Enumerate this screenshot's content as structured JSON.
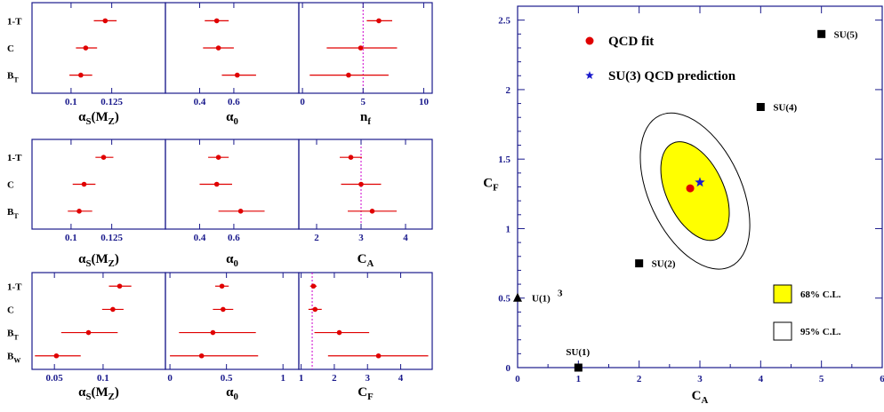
{
  "chart_data": [
    {
      "type": "error-bar-panels",
      "rows": [
        {
          "labels": [
            "1-T",
            "C",
            "B_T"
          ],
          "panels": [
            {
              "xlabel": "α_S(M_Z)",
              "xlim": [
                0.076,
                0.158
              ],
              "ticks": [
                0.1,
                0.125
              ],
              "tick_labels": [
                "0.1",
                "0.125"
              ],
              "points": [
                {
                  "label": "1-T",
                  "value": 0.121,
                  "err_low": 0.007,
                  "err_high": 0.007
                },
                {
                  "label": "C",
                  "value": 0.109,
                  "err_low": 0.006,
                  "err_high": 0.007
                },
                {
                  "label": "B_T",
                  "value": 0.106,
                  "err_low": 0.007,
                  "err_high": 0.007
                }
              ]
            },
            {
              "xlabel": "α_0",
              "xlim": [
                0.2,
                0.98
              ],
              "ticks": [
                0.4,
                0.6
              ],
              "tick_labels": [
                "0.4",
                "0.6"
              ],
              "points": [
                {
                  "label": "1-T",
                  "value": 0.5,
                  "err_low": 0.07,
                  "err_high": 0.07
                },
                {
                  "label": "C",
                  "value": 0.51,
                  "err_low": 0.09,
                  "err_high": 0.09
                },
                {
                  "label": "B_T",
                  "value": 0.62,
                  "err_low": 0.09,
                  "err_high": 0.11
                }
              ]
            },
            {
              "xlabel": "n_f",
              "xlim": [
                -0.3,
                10.7
              ],
              "ticks": [
                0,
                5,
                10
              ],
              "tick_labels": [
                "0",
                "5",
                "10"
              ],
              "reference": 5,
              "points": [
                {
                  "label": "1-T",
                  "value": 6.3,
                  "err_low": 1.0,
                  "err_high": 1.1
                },
                {
                  "label": "C",
                  "value": 4.8,
                  "err_low": 2.8,
                  "err_high": 3.0
                },
                {
                  "label": "B_T",
                  "value": 3.8,
                  "err_low": 3.2,
                  "err_high": 3.3
                }
              ]
            }
          ]
        },
        {
          "labels": [
            "1-T",
            "C",
            "B_T"
          ],
          "panels": [
            {
              "xlabel": "α_S(M_Z)",
              "xlim": [
                0.076,
                0.158
              ],
              "ticks": [
                0.1,
                0.125
              ],
              "tick_labels": [
                "0.1",
                "0.125"
              ],
              "points": [
                {
                  "label": "1-T",
                  "value": 0.12,
                  "err_low": 0.005,
                  "err_high": 0.006
                },
                {
                  "label": "C",
                  "value": 0.108,
                  "err_low": 0.007,
                  "err_high": 0.007
                },
                {
                  "label": "B_T",
                  "value": 0.105,
                  "err_low": 0.007,
                  "err_high": 0.008
                }
              ]
            },
            {
              "xlabel": "α_0",
              "xlim": [
                0.2,
                0.98
              ],
              "ticks": [
                0.4,
                0.6
              ],
              "tick_labels": [
                "0.4",
                "0.6"
              ],
              "points": [
                {
                  "label": "1-T",
                  "value": 0.51,
                  "err_low": 0.06,
                  "err_high": 0.06
                },
                {
                  "label": "C",
                  "value": 0.5,
                  "err_low": 0.1,
                  "err_high": 0.09
                },
                {
                  "label": "B_T",
                  "value": 0.64,
                  "err_low": 0.13,
                  "err_high": 0.14
                }
              ]
            },
            {
              "xlabel": "C_A",
              "xlim": [
                1.6,
                4.6
              ],
              "ticks": [
                2,
                3,
                4
              ],
              "tick_labels": [
                "2",
                "3",
                "4"
              ],
              "reference": 3,
              "points": [
                {
                  "label": "1-T",
                  "value": 2.77,
                  "err_low": 0.25,
                  "err_high": 0.25
                },
                {
                  "label": "C",
                  "value": 3.0,
                  "err_low": 0.45,
                  "err_high": 0.45
                },
                {
                  "label": "B_T",
                  "value": 3.25,
                  "err_low": 0.55,
                  "err_high": 0.55
                }
              ]
            }
          ]
        },
        {
          "labels": [
            "1-T",
            "C",
            "B_T",
            "B_W"
          ],
          "panels": [
            {
              "xlabel": "α_S(M_Z)",
              "xlim": [
                0.027,
                0.164
              ],
              "ticks": [
                0.05,
                0.1
              ],
              "tick_labels": [
                "0.05",
                "0.1"
              ],
              "points": [
                {
                  "label": "1-T",
                  "value": 0.117,
                  "err_low": 0.011,
                  "err_high": 0.012
                },
                {
                  "label": "C",
                  "value": 0.11,
                  "err_low": 0.011,
                  "err_high": 0.011
                },
                {
                  "label": "B_T",
                  "value": 0.085,
                  "err_low": 0.028,
                  "err_high": 0.03
                },
                {
                  "label": "B_W",
                  "value": 0.052,
                  "err_low": 0.022,
                  "err_high": 0.025
                }
              ]
            },
            {
              "xlabel": "α_0",
              "xlim": [
                -0.04,
                1.14
              ],
              "ticks": [
                0,
                0.5,
                1
              ],
              "tick_labels": [
                "0",
                "0.5",
                "1"
              ],
              "points": [
                {
                  "label": "1-T",
                  "value": 0.46,
                  "err_low": 0.06,
                  "err_high": 0.06
                },
                {
                  "label": "C",
                  "value": 0.47,
                  "err_low": 0.09,
                  "err_high": 0.09
                },
                {
                  "label": "B_T",
                  "value": 0.38,
                  "err_low": 0.3,
                  "err_high": 0.38
                },
                {
                  "label": "B_W",
                  "value": 0.28,
                  "err_low": 0.28,
                  "err_high": 0.5
                }
              ]
            },
            {
              "xlabel": "C_F",
              "xlim": [
                0.93,
                4.95
              ],
              "ticks": [
                1,
                2,
                3,
                4
              ],
              "tick_labels": [
                "1",
                "2",
                "3",
                "4"
              ],
              "reference": 1.333,
              "points": [
                {
                  "label": "1-T",
                  "value": 1.37,
                  "err_low": 0.1,
                  "err_high": 0.1
                },
                {
                  "label": "C",
                  "value": 1.42,
                  "err_low": 0.2,
                  "err_high": 0.2
                },
                {
                  "label": "B_T",
                  "value": 2.15,
                  "err_low": 0.75,
                  "err_high": 0.9
                },
                {
                  "label": "B_W",
                  "value": 3.33,
                  "err_low": 1.52,
                  "err_high": 1.5
                }
              ]
            }
          ]
        }
      ]
    },
    {
      "type": "scatter",
      "xlabel": "C_A",
      "ylabel": "C_F",
      "xlim": [
        0,
        6
      ],
      "ylim": [
        0,
        2.6
      ],
      "xticks": [
        0,
        1,
        2,
        3,
        4,
        5,
        6
      ],
      "xtick_labels": [
        "0",
        "1",
        "2",
        "3",
        "4",
        "5",
        "6"
      ],
      "yticks": [
        0,
        0.5,
        1,
        1.5,
        2,
        2.5
      ],
      "ytick_labels": [
        "0",
        "0.5",
        "1",
        "1.5",
        "2",
        "2.5"
      ],
      "groups": [
        {
          "label": "SU(1)",
          "x": 1,
          "y": 0,
          "marker": "square"
        },
        {
          "label": "SU(2)",
          "x": 2,
          "y": 0.75,
          "marker": "square"
        },
        {
          "label": "SU(4)",
          "x": 4,
          "y": 1.875,
          "marker": "square"
        },
        {
          "label": "SU(5)",
          "x": 5,
          "y": 2.4,
          "marker": "square"
        },
        {
          "label": "U(1)",
          "label_sup": "3",
          "x": 0,
          "y": 0.5,
          "marker": "triangle"
        }
      ],
      "fit": {
        "label": "QCD fit",
        "x": 2.84,
        "y": 1.29,
        "color": "#e00000"
      },
      "prediction": {
        "label": "SU(3) QCD prediction",
        "x": 3,
        "y": 1.333,
        "color": "#1a1acc"
      },
      "contours": [
        {
          "label": "68% C.L.",
          "fill": "#ffff00",
          "cx": 2.92,
          "cy": 1.27,
          "rx": 0.47,
          "ry": 0.38,
          "angle": -25
        },
        {
          "label": "95% C.L.",
          "fill": "#ffffff",
          "cx": 2.92,
          "cy": 1.27,
          "rx": 0.76,
          "ry": 0.6,
          "angle": -25
        }
      ]
    }
  ]
}
